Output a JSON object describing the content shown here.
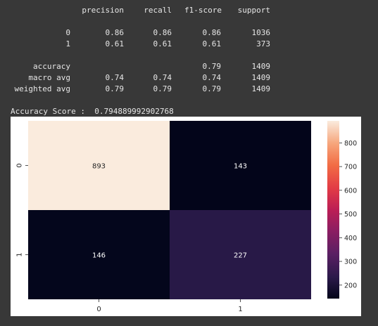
{
  "report": {
    "headers": {
      "precision": "precision",
      "recall": "recall",
      "f1": "f1-score",
      "support": "support"
    },
    "rows": [
      {
        "label": "0",
        "precision": "0.86",
        "recall": "0.86",
        "f1": "0.86",
        "support": "1036"
      },
      {
        "label": "1",
        "precision": "0.61",
        "recall": "0.61",
        "f1": "0.61",
        "support": "373"
      }
    ],
    "accuracy": {
      "label": "accuracy",
      "f1": "0.79",
      "support": "1409"
    },
    "macro": {
      "label": "macro avg",
      "precision": "0.74",
      "recall": "0.74",
      "f1": "0.74",
      "support": "1409"
    },
    "weighted": {
      "label": "weighted avg",
      "precision": "0.79",
      "recall": "0.79",
      "f1": "0.79",
      "support": "1409"
    }
  },
  "accuracy_line": "Accuracy Score :  0.794889992902768",
  "chart_data": {
    "type": "heatmap",
    "x_categories": [
      "0",
      "1"
    ],
    "y_categories": [
      "0",
      "1"
    ],
    "values": [
      [
        893,
        143
      ],
      [
        146,
        227
      ]
    ],
    "colorbar": {
      "ticks": [
        200,
        300,
        400,
        500,
        600,
        700,
        800
      ],
      "min": 143,
      "max": 893,
      "colormap": "rocket"
    },
    "annotation_colors": {
      "dark_text": "#262626",
      "light_text": "#ffffff"
    },
    "grid": false
  }
}
